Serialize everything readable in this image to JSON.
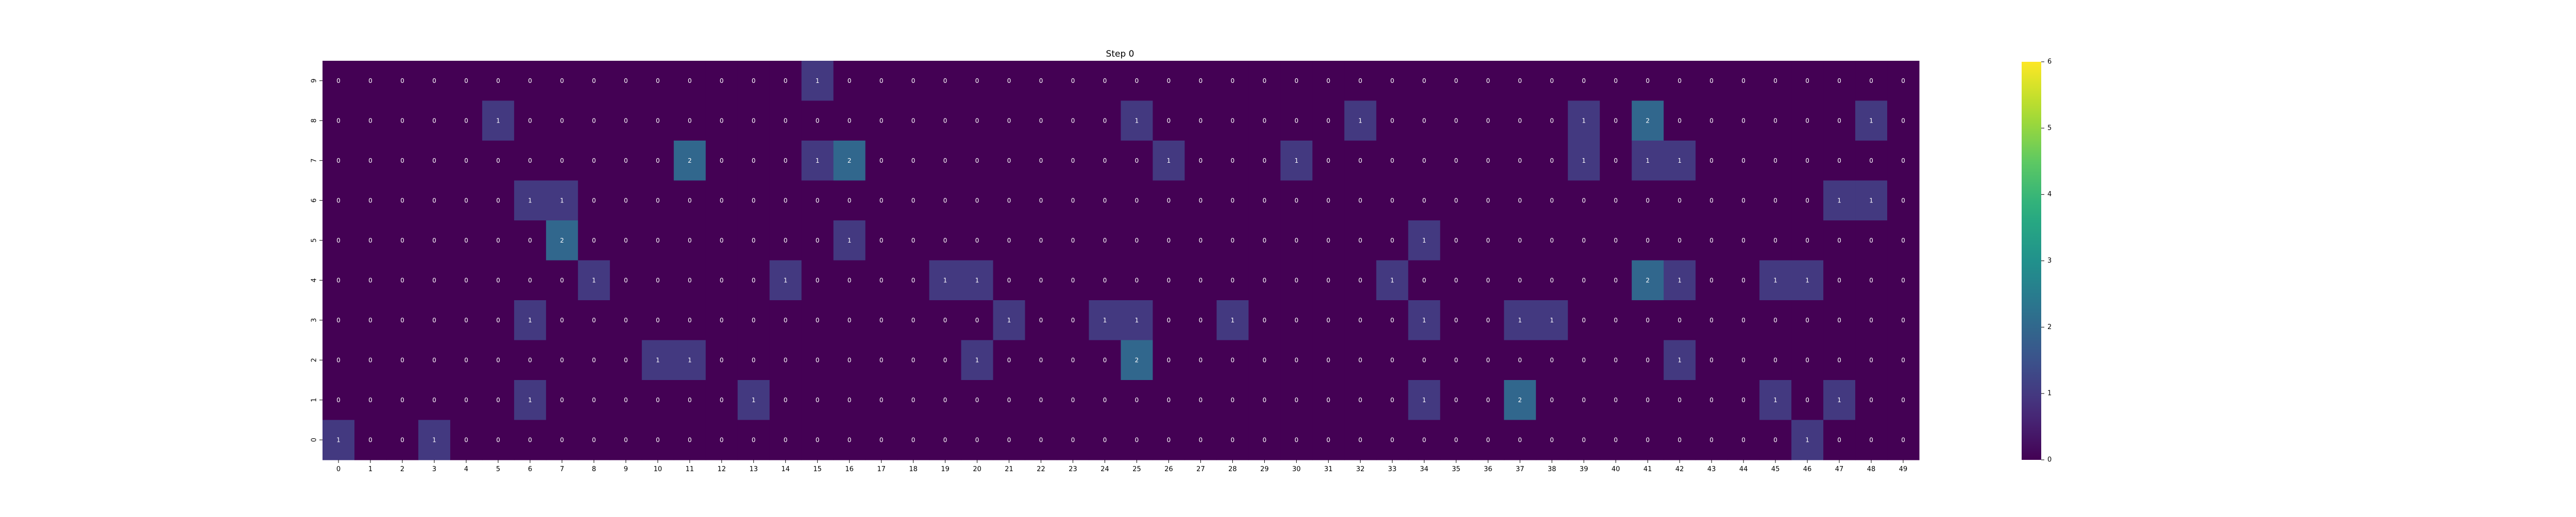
{
  "chart_data": {
    "type": "heatmap",
    "title": "Step 0",
    "xlabel": "",
    "ylabel": "",
    "x_ticks": [
      "0",
      "1",
      "2",
      "3",
      "4",
      "5",
      "6",
      "7",
      "8",
      "9",
      "10",
      "11",
      "12",
      "13",
      "14",
      "15",
      "16",
      "17",
      "18",
      "19",
      "20",
      "21",
      "22",
      "23",
      "24",
      "25",
      "26",
      "27",
      "28",
      "29",
      "30",
      "31",
      "32",
      "33",
      "34",
      "35",
      "36",
      "37",
      "38",
      "39",
      "40",
      "41",
      "42",
      "43",
      "44",
      "45",
      "46",
      "47",
      "48",
      "49"
    ],
    "y_ticks": [
      "9",
      "8",
      "7",
      "6",
      "5",
      "4",
      "3",
      "2",
      "1",
      "0"
    ],
    "colormap": "viridis",
    "vmin": 0,
    "vmax": 6,
    "colorbar_ticks": [
      0,
      1,
      2,
      3,
      4,
      5,
      6
    ],
    "cell_labels_shown": true,
    "grid": false,
    "values": [
      [
        0,
        0,
        0,
        0,
        0,
        0,
        0,
        0,
        0,
        0,
        0,
        0,
        0,
        0,
        0,
        1,
        0,
        0,
        0,
        0,
        0,
        0,
        0,
        0,
        0,
        0,
        0,
        0,
        0,
        0,
        0,
        0,
        0,
        0,
        0,
        0,
        0,
        0,
        0,
        0,
        0,
        0,
        0,
        0,
        0,
        0,
        0,
        0,
        0,
        0
      ],
      [
        0,
        0,
        0,
        0,
        0,
        1,
        0,
        0,
        0,
        0,
        0,
        0,
        0,
        0,
        0,
        0,
        0,
        0,
        0,
        0,
        0,
        0,
        0,
        0,
        0,
        1,
        0,
        0,
        0,
        0,
        0,
        0,
        1,
        0,
        0,
        0,
        0,
        0,
        0,
        1,
        0,
        2,
        0,
        0,
        0,
        0,
        0,
        0,
        1,
        0
      ],
      [
        0,
        0,
        0,
        0,
        0,
        0,
        0,
        0,
        0,
        0,
        0,
        2,
        0,
        0,
        0,
        1,
        2,
        0,
        0,
        0,
        0,
        0,
        0,
        0,
        0,
        0,
        1,
        0,
        0,
        0,
        1,
        0,
        0,
        0,
        0,
        0,
        0,
        0,
        0,
        1,
        0,
        1,
        1,
        0,
        0,
        0,
        0,
        0,
        0,
        0
      ],
      [
        0,
        0,
        0,
        0,
        0,
        0,
        1,
        1,
        0,
        0,
        0,
        0,
        0,
        0,
        0,
        0,
        0,
        0,
        0,
        0,
        0,
        0,
        0,
        0,
        0,
        0,
        0,
        0,
        0,
        0,
        0,
        0,
        0,
        0,
        0,
        0,
        0,
        0,
        0,
        0,
        0,
        0,
        0,
        0,
        0,
        0,
        0,
        1,
        1,
        0
      ],
      [
        0,
        0,
        0,
        0,
        0,
        0,
        0,
        2,
        0,
        0,
        0,
        0,
        0,
        0,
        0,
        0,
        1,
        0,
        0,
        0,
        0,
        0,
        0,
        0,
        0,
        0,
        0,
        0,
        0,
        0,
        0,
        0,
        0,
        0,
        1,
        0,
        0,
        0,
        0,
        0,
        0,
        0,
        0,
        0,
        0,
        0,
        0,
        0,
        0,
        0
      ],
      [
        0,
        0,
        0,
        0,
        0,
        0,
        0,
        0,
        1,
        0,
        0,
        0,
        0,
        0,
        1,
        0,
        0,
        0,
        0,
        1,
        1,
        0,
        0,
        0,
        0,
        0,
        0,
        0,
        0,
        0,
        0,
        0,
        0,
        1,
        0,
        0,
        0,
        0,
        0,
        0,
        0,
        2,
        1,
        0,
        0,
        1,
        1,
        0,
        0,
        0
      ],
      [
        0,
        0,
        0,
        0,
        0,
        0,
        1,
        0,
        0,
        0,
        0,
        0,
        0,
        0,
        0,
        0,
        0,
        0,
        0,
        0,
        0,
        1,
        0,
        0,
        1,
        1,
        0,
        0,
        1,
        0,
        0,
        0,
        0,
        0,
        1,
        0,
        0,
        1,
        1,
        0,
        0,
        0,
        0,
        0,
        0,
        0,
        0,
        0,
        0,
        0
      ],
      [
        0,
        0,
        0,
        0,
        0,
        0,
        0,
        0,
        0,
        0,
        1,
        1,
        0,
        0,
        0,
        0,
        0,
        0,
        0,
        0,
        1,
        0,
        0,
        0,
        0,
        2,
        0,
        0,
        0,
        0,
        0,
        0,
        0,
        0,
        0,
        0,
        0,
        0,
        0,
        0,
        0,
        0,
        1,
        0,
        0,
        0,
        0,
        0,
        0,
        0
      ],
      [
        0,
        0,
        0,
        0,
        0,
        0,
        1,
        0,
        0,
        0,
        0,
        0,
        0,
        1,
        0,
        0,
        0,
        0,
        0,
        0,
        0,
        0,
        0,
        0,
        0,
        0,
        0,
        0,
        0,
        0,
        0,
        0,
        0,
        0,
        1,
        0,
        0,
        2,
        0,
        0,
        0,
        0,
        0,
        0,
        0,
        1,
        0,
        1,
        0,
        0
      ],
      [
        1,
        0,
        0,
        1,
        0,
        0,
        0,
        0,
        0,
        0,
        0,
        0,
        0,
        0,
        0,
        0,
        0,
        0,
        0,
        0,
        0,
        0,
        0,
        0,
        0,
        0,
        0,
        0,
        0,
        0,
        0,
        0,
        0,
        0,
        0,
        0,
        0,
        0,
        0,
        0,
        0,
        0,
        0,
        0,
        0,
        0,
        1,
        0,
        0,
        0
      ]
    ]
  }
}
